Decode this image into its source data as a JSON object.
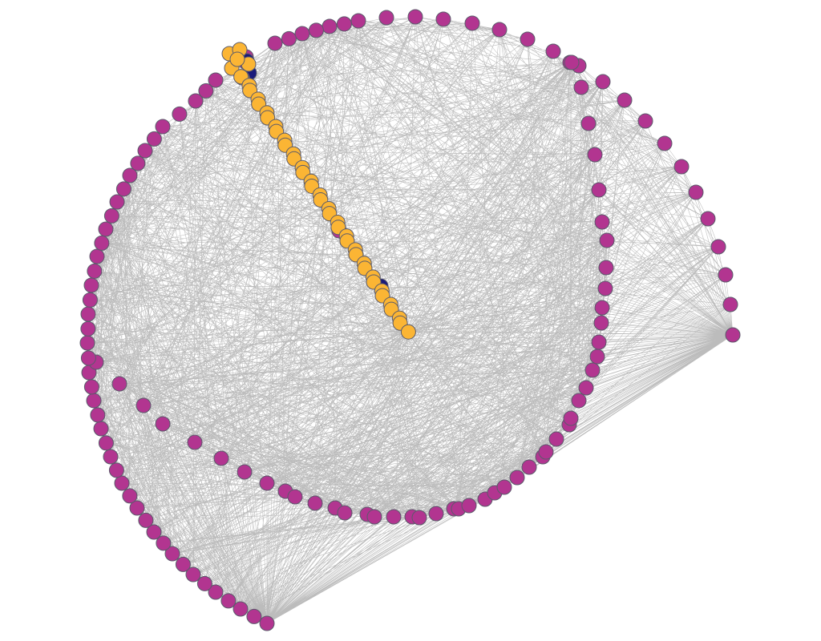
{
  "diagram": {
    "type": "network-graph",
    "background_color": "#ffffff",
    "edge_color": "#bcbcbc",
    "node_outline_color": "#5b5b6b",
    "groups": [
      {
        "id": "magenta",
        "color": "#b23590",
        "count": 121
      },
      {
        "id": "orange",
        "color": "#fbb534",
        "count": 44
      },
      {
        "id": "navy",
        "color": "#1a1a7a",
        "count": 3
      }
    ],
    "edge_density": "dense"
  }
}
